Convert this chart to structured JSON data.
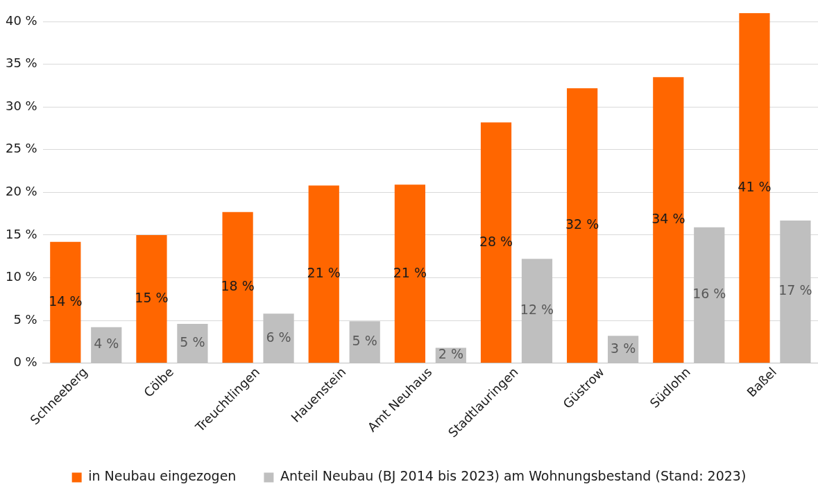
{
  "chart_data": {
    "type": "bar",
    "categories": [
      "Schneeberg",
      "Cölbe",
      "Treuchtlingen",
      "Hauenstein",
      "Amt Neuhaus",
      "Stadtlauringen",
      "Güstrow",
      "Südlohn",
      "Baßel"
    ],
    "series": [
      {
        "name": "in Neubau eingezogen",
        "color": "#ff6600",
        "values": [
          14.2,
          15.0,
          17.7,
          20.8,
          20.9,
          28.2,
          32.2,
          33.5,
          41.0
        ],
        "value_labels": [
          "14 %",
          "15 %",
          "18 %",
          "21 %",
          "21 %",
          "28 %",
          "32 %",
          "34 %",
          "41 %"
        ]
      },
      {
        "name": "Anteil Neubau (BJ 2014 bis 2023) am Wohnungsbestand (Stand: 2023)",
        "color": "#bfbfbf",
        "values": [
          4.2,
          4.6,
          5.8,
          4.9,
          1.8,
          12.2,
          3.2,
          15.9,
          16.7
        ],
        "value_labels": [
          "4 %",
          "5 %",
          "6 %",
          "5 %",
          "2 %",
          "12 %",
          "3 %",
          "16 %",
          "17 %"
        ]
      }
    ],
    "ylim": [
      0,
      41
    ],
    "yticks": [
      {
        "value": 0,
        "label": "0 %"
      },
      {
        "value": 5,
        "label": "5 %"
      },
      {
        "value": 10,
        "label": "10 %"
      },
      {
        "value": 15,
        "label": "15 %"
      },
      {
        "value": 20,
        "label": "20 %"
      },
      {
        "value": 25,
        "label": "25 %"
      },
      {
        "value": 30,
        "label": "30 %"
      },
      {
        "value": 35,
        "label": "35 %"
      },
      {
        "value": 40,
        "label": "40 %"
      }
    ],
    "grid": "y",
    "legend": "bottom"
  }
}
